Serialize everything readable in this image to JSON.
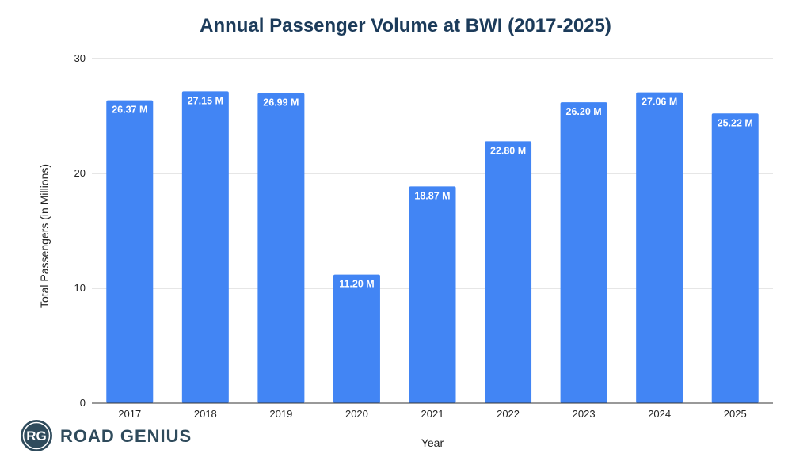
{
  "chart_data": {
    "type": "bar",
    "title": "Annual Passenger Volume at BWI (2017-2025)",
    "xlabel": "Year",
    "ylabel": "Total Passengers (in Millions)",
    "categories": [
      "2017",
      "2018",
      "2019",
      "2020",
      "2021",
      "2022",
      "2023",
      "2024",
      "2025"
    ],
    "values": [
      26.37,
      27.15,
      26.99,
      11.2,
      18.87,
      22.8,
      26.2,
      27.06,
      25.22
    ],
    "data_labels": [
      "26.37 M",
      "27.15 M",
      "26.99 M",
      "11.20 M",
      "18.87 M",
      "22.80 M",
      "26.20 M",
      "27.06 M",
      "25.22 M"
    ],
    "ylim": [
      0,
      30
    ],
    "yticks": [
      0,
      10,
      20,
      30
    ],
    "ytick_labels": [
      "0",
      "10",
      "20",
      "30"
    ],
    "grid": true,
    "legend": "none",
    "bar_color": "#4285f4"
  },
  "branding": {
    "logo_mark": "RG",
    "logo_name": "ROAD GENIUS",
    "logo_icon": "road-genius-logo-icon"
  }
}
